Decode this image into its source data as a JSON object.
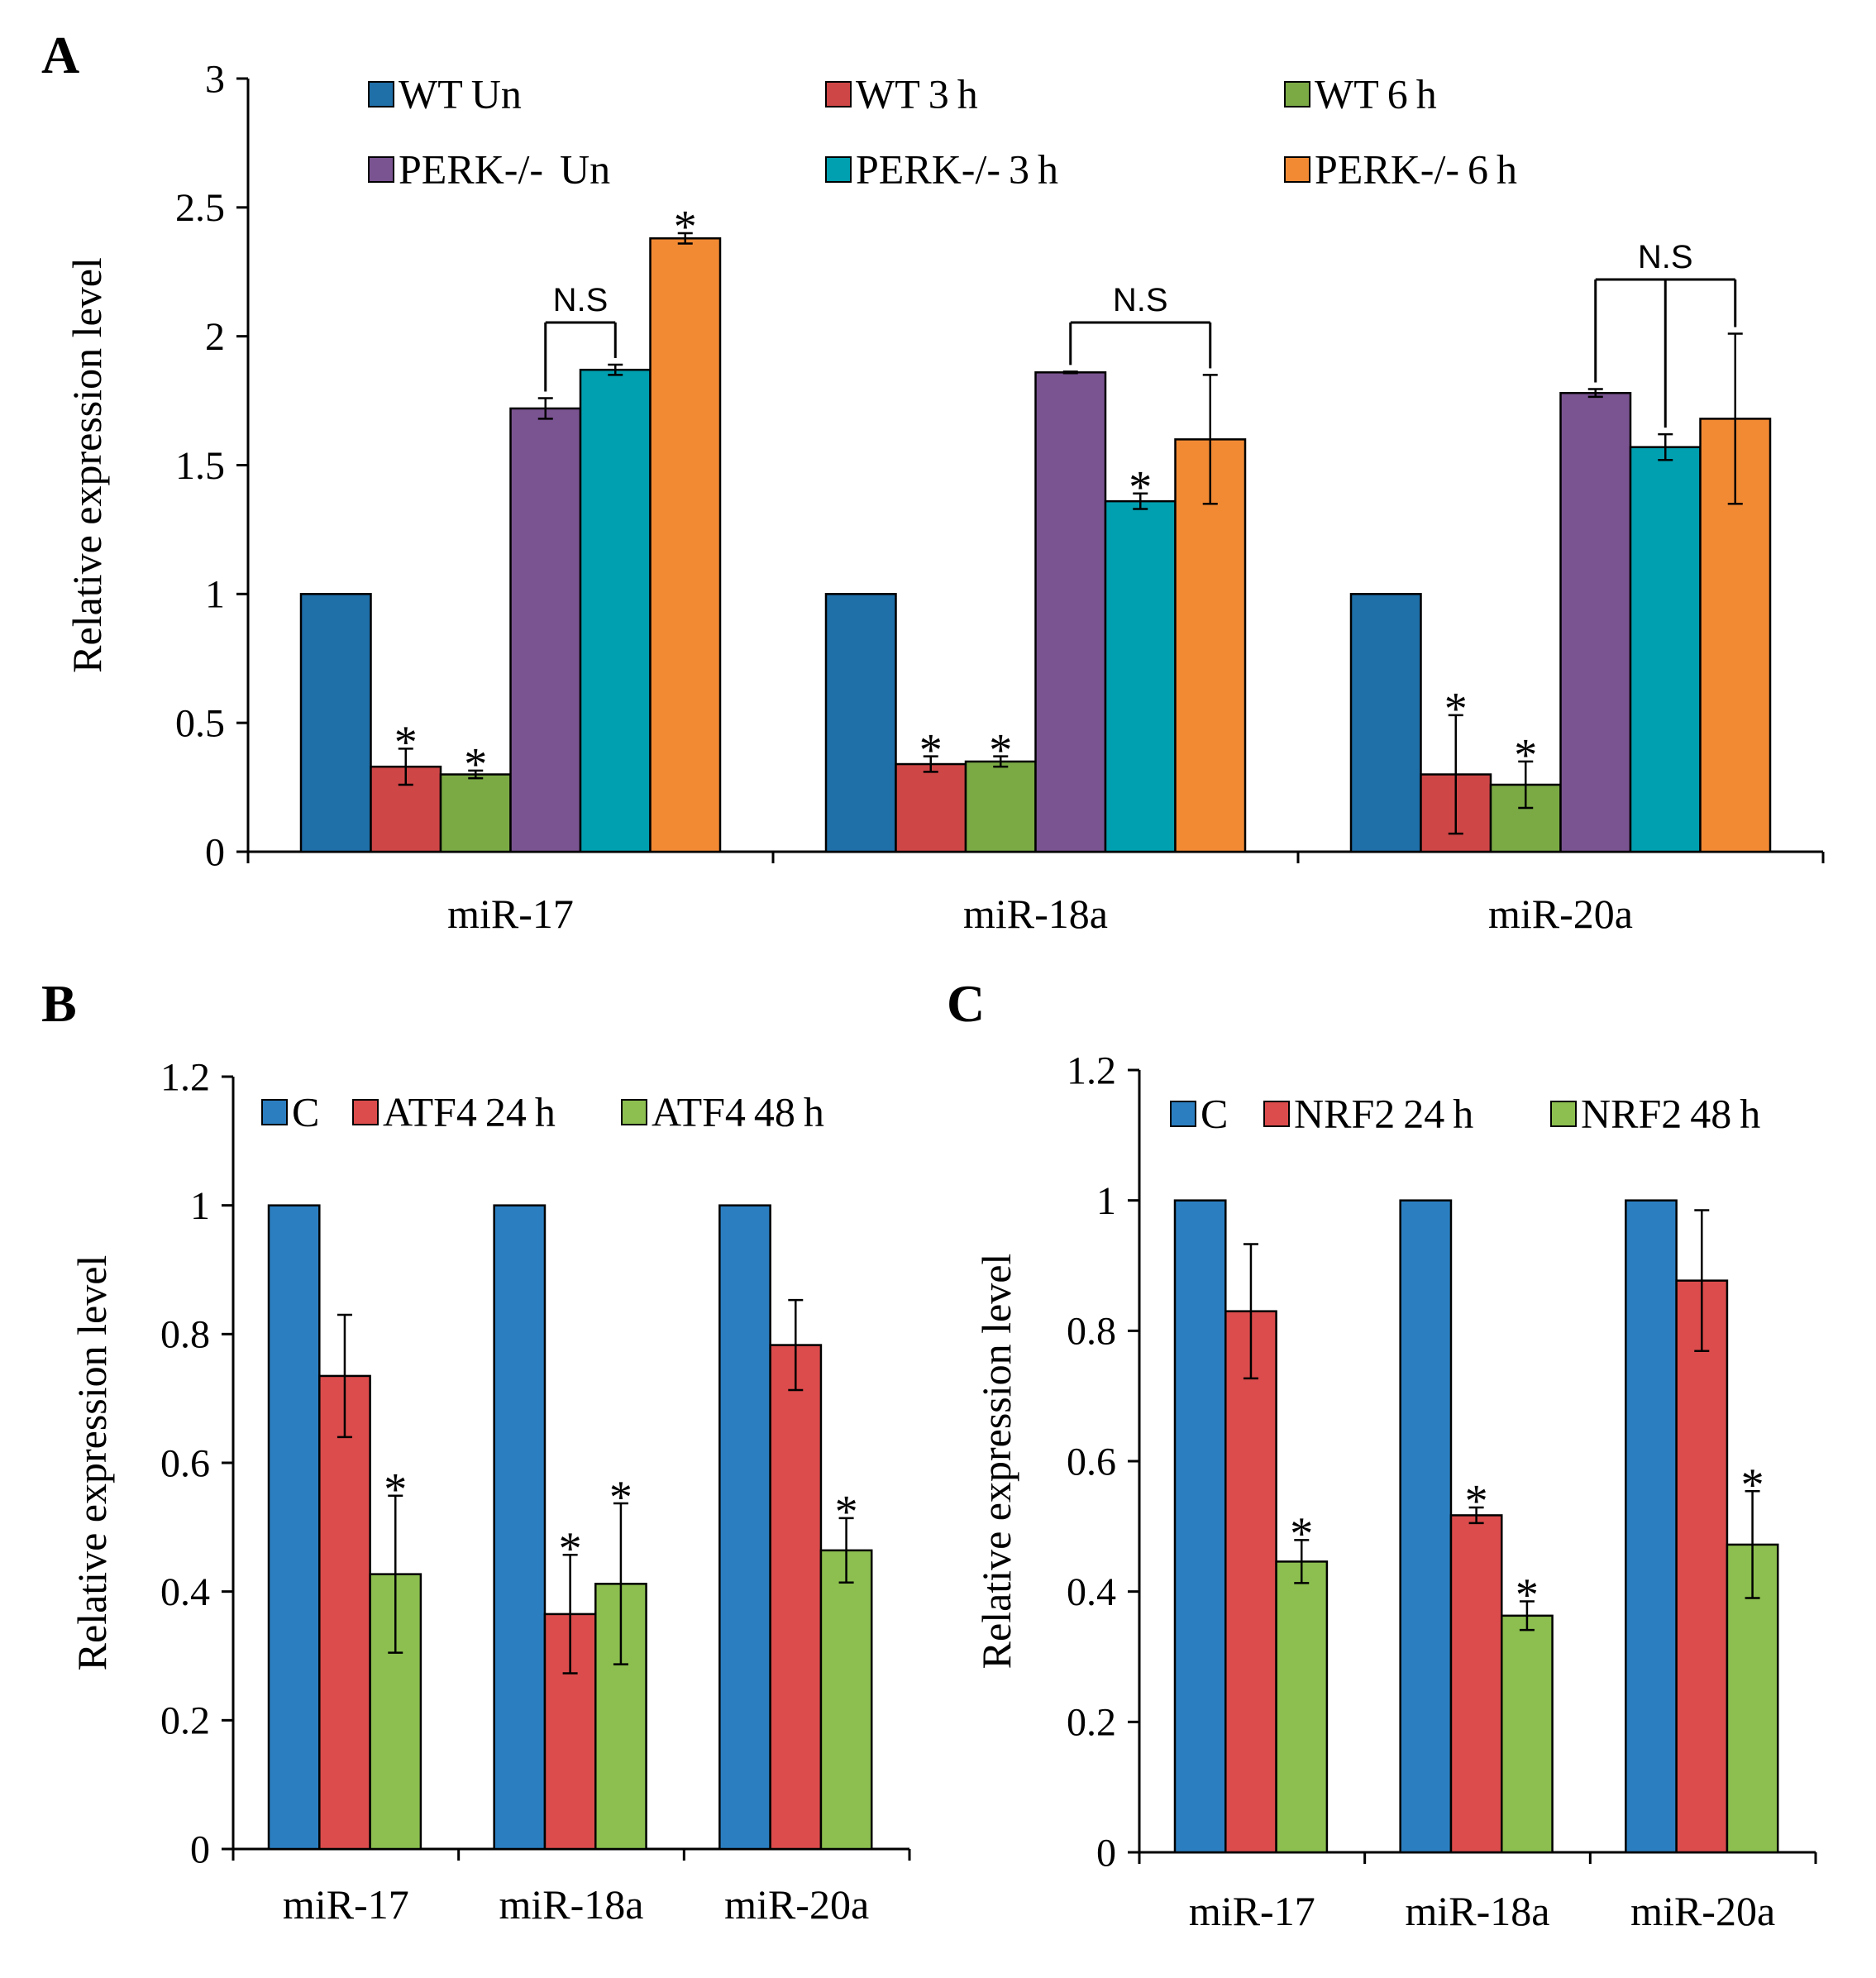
{
  "panels": [
    {
      "id": "A",
      "letter": "A"
    },
    {
      "id": "B",
      "letter": "B"
    },
    {
      "id": "C",
      "letter": "C"
    }
  ],
  "chart_data": [
    {
      "panel": "A",
      "type": "bar",
      "title": "",
      "xlabel": "",
      "ylabel": "Relative expression level",
      "ylim": [
        0,
        3
      ],
      "yticks": [
        0,
        0.5,
        1,
        1.5,
        2,
        2.5,
        3
      ],
      "ytick_labels": [
        "0",
        "0.5",
        "1",
        "1.5",
        "2",
        "2.5",
        "3"
      ],
      "categories": [
        "miR-17",
        "miR-18a",
        "miR-20a"
      ],
      "legend_position": "top",
      "series": [
        {
          "name": "WT Un",
          "color": "#1F6FA8",
          "values": [
            1,
            1,
            1
          ],
          "errors": [
            0,
            0,
            0
          ],
          "sig": [
            false,
            false,
            false
          ]
        },
        {
          "name": "WT 3 h",
          "color": "#CF4647",
          "values": [
            0.33,
            0.34,
            0.3
          ],
          "errors": [
            0.07,
            0.03,
            0.23
          ],
          "sig": [
            true,
            true,
            true
          ]
        },
        {
          "name": "WT 6 h",
          "color": "#7BAA45",
          "values": [
            0.3,
            0.35,
            0.26
          ],
          "errors": [
            0.015,
            0.02,
            0.09
          ],
          "sig": [
            true,
            true,
            true
          ]
        },
        {
          "name": "PERK-/-  Un",
          "color": "#7A5491",
          "values": [
            1.72,
            1.86,
            1.78
          ],
          "errors": [
            0.04,
            0.003,
            0.015
          ],
          "sig": [
            false,
            false,
            false
          ]
        },
        {
          "name": "PERK-/- 3 h",
          "color": "#00A0B0",
          "values": [
            1.87,
            1.36,
            1.57
          ],
          "errors": [
            0.02,
            0.03,
            0.05
          ],
          "sig": [
            false,
            true,
            false
          ]
        },
        {
          "name": "PERK-/- 6 h",
          "color": "#F28A34",
          "values": [
            2.38,
            1.6,
            1.68
          ],
          "errors": [
            0.02,
            0.25,
            0.33
          ],
          "sig": [
            true,
            false,
            false
          ]
        }
      ],
      "significance_marker": "*",
      "brackets": [
        {
          "category": 0,
          "from_series": 3,
          "to_series": [
            4
          ],
          "label": "N.S"
        },
        {
          "category": 1,
          "from_series": 3,
          "to_series": [
            5
          ],
          "label": "N.S"
        },
        {
          "category": 2,
          "from_series": 3,
          "to_series": [
            4,
            5
          ],
          "label": "N.S"
        }
      ]
    },
    {
      "panel": "B",
      "type": "bar",
      "title": "",
      "xlabel": "",
      "ylabel": "Relative expression level",
      "ylim": [
        0,
        1.2
      ],
      "yticks": [
        0,
        0.2,
        0.4,
        0.6,
        0.8,
        1,
        1.2
      ],
      "ytick_labels": [
        "0",
        "0.2",
        "0.4",
        "0.6",
        "0.8",
        "1",
        "1.2"
      ],
      "categories": [
        "miR-17",
        "miR-18a",
        "miR-20a"
      ],
      "legend_position": "top",
      "series": [
        {
          "name": "C",
          "color": "#2B7FC1",
          "values": [
            1,
            1,
            1
          ],
          "errors": [
            0,
            0,
            0
          ],
          "sig": [
            false,
            false,
            false
          ]
        },
        {
          "name": "ATF4 24 h",
          "color": "#DC4C4C",
          "values": [
            0.735,
            0.365,
            0.783
          ],
          "errors": [
            0.095,
            0.092,
            0.07
          ],
          "sig": [
            false,
            true,
            false
          ]
        },
        {
          "name": "ATF4 48 h",
          "color": "#8CBF4F",
          "values": [
            0.427,
            0.412,
            0.464
          ],
          "errors": [
            0.122,
            0.125,
            0.05
          ],
          "sig": [
            true,
            true,
            true
          ]
        }
      ],
      "significance_marker": "*"
    },
    {
      "panel": "C",
      "type": "bar",
      "title": "",
      "xlabel": "",
      "ylabel": "Relative expression level",
      "ylim": [
        0,
        1.2
      ],
      "yticks": [
        0,
        0.2,
        0.4,
        0.6,
        0.8,
        1,
        1.2
      ],
      "ytick_labels": [
        "0",
        "0.2",
        "0.4",
        "0.6",
        "0.8",
        "1",
        "1.2"
      ],
      "categories": [
        "miR-17",
        "miR-18a",
        "miR-20a"
      ],
      "legend_position": "top",
      "series": [
        {
          "name": "C",
          "color": "#2B7FC1",
          "values": [
            1,
            1,
            1
          ],
          "errors": [
            0,
            0,
            0
          ],
          "sig": [
            false,
            false,
            false
          ]
        },
        {
          "name": "NRF2 24 h",
          "color": "#DC4C4C",
          "values": [
            0.83,
            0.517,
            0.877
          ],
          "errors": [
            0.103,
            0.012,
            0.108
          ],
          "sig": [
            false,
            true,
            false
          ]
        },
        {
          "name": "NRF2 48 h",
          "color": "#8CBF4F",
          "values": [
            0.446,
            0.363,
            0.472
          ],
          "errors": [
            0.033,
            0.022,
            0.082
          ],
          "sig": [
            true,
            true,
            true
          ]
        }
      ],
      "significance_marker": "*"
    }
  ]
}
